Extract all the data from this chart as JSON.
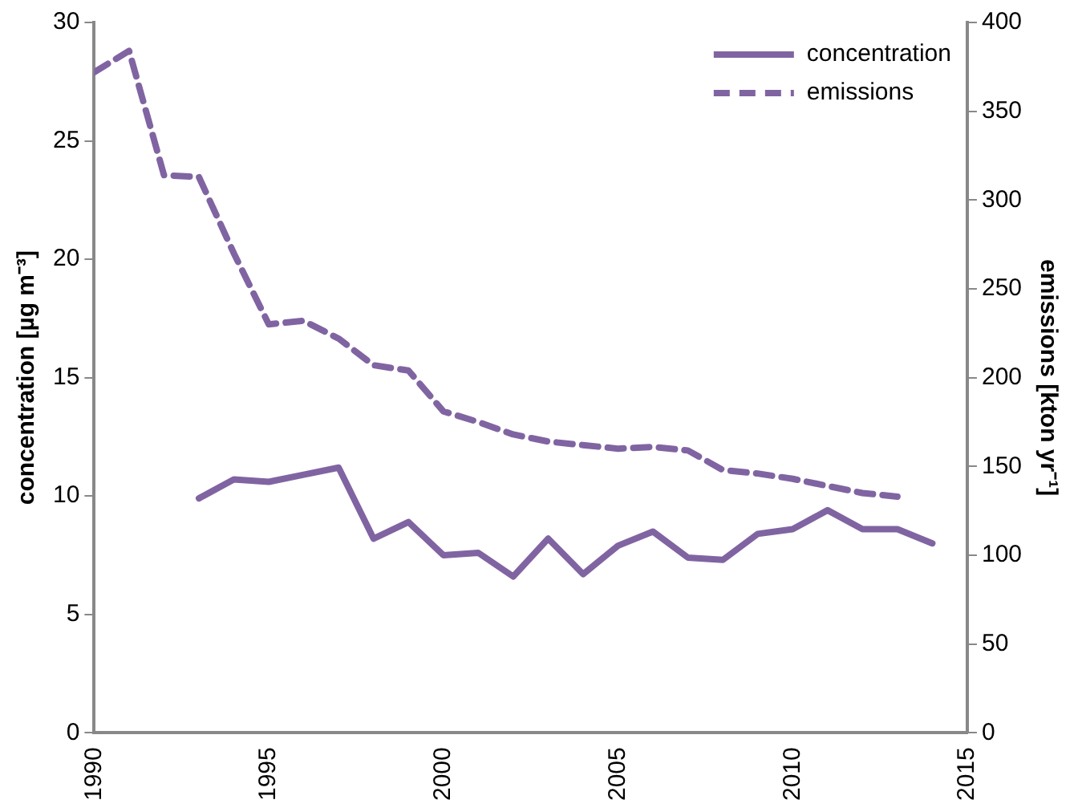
{
  "chart_data": {
    "type": "line",
    "ylabel": "concentration [µg m⁻³]",
    "y2label": "emissions [kton yr⁻¹]",
    "x": [
      1990,
      1991,
      1992,
      1993,
      1994,
      1995,
      1996,
      1997,
      1998,
      1999,
      2000,
      2001,
      2002,
      2003,
      2004,
      2005,
      2006,
      2007,
      2008,
      2009,
      2010,
      2011,
      2012,
      2013,
      2014
    ],
    "series": [
      {
        "name": "concentration",
        "color": "#8064a2",
        "line_style": "solid",
        "values": [
          null,
          null,
          null,
          9.9,
          10.7,
          10.6,
          10.9,
          11.2,
          8.2,
          8.9,
          7.5,
          7.6,
          6.6,
          8.2,
          6.7,
          7.9,
          8.5,
          7.4,
          7.3,
          8.4,
          8.6,
          9.4,
          8.6,
          8.6,
          8.0
        ]
      },
      {
        "name": "emissions",
        "color": "#8064a2",
        "line_style": "dashed",
        "axis": "y2",
        "values": [
          372,
          384,
          314,
          313,
          270,
          230,
          232,
          222,
          207,
          204,
          181,
          175,
          168,
          164,
          162,
          160,
          161,
          159,
          148,
          146,
          143,
          139,
          135,
          133,
          null
        ]
      }
    ],
    "xlim": [
      1990,
      2015
    ],
    "xticks": [
      1990,
      1995,
      2000,
      2005,
      2010,
      2015
    ],
    "ylim": [
      0,
      30
    ],
    "yticks": [
      0,
      5,
      10,
      15,
      20,
      25,
      30
    ],
    "y2lim": [
      0,
      400
    ],
    "y2ticks": [
      0,
      50,
      100,
      150,
      200,
      250,
      300,
      350,
      400
    ],
    "grid": false,
    "legend": "top right",
    "marker": "none"
  }
}
